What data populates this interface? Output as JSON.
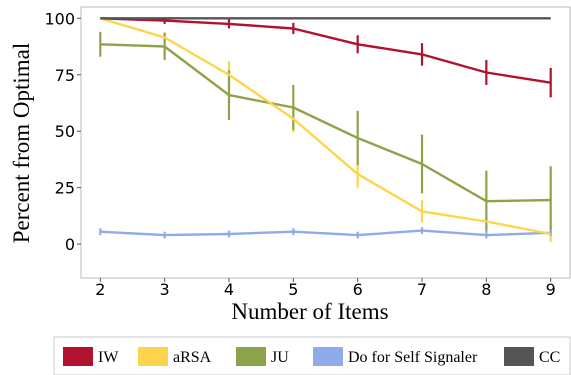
{
  "chart_data": {
    "type": "line",
    "x": [
      2,
      3,
      4,
      5,
      6,
      7,
      8,
      9
    ],
    "xlabel": "Number of Items",
    "ylabel": "Percent from Optimal",
    "xlim": [
      1.7,
      9.3
    ],
    "ylim": [
      -15,
      105
    ],
    "xticks": [
      "2",
      "3",
      "4",
      "5",
      "6",
      "7",
      "8",
      "9"
    ],
    "yticks": [
      "0",
      "25",
      "50",
      "75",
      "100"
    ],
    "grid": false,
    "legend_position": "bottom",
    "series": [
      {
        "name": "IW",
        "color": "#b0122f",
        "values": [
          100,
          99,
          97.5,
          95.5,
          88.5,
          84,
          76,
          71.5
        ],
        "err": [
          0,
          1.5,
          2,
          2.5,
          4,
          5,
          5.5,
          6.5
        ]
      },
      {
        "name": "aRSA",
        "color": "#fdd54d",
        "values": [
          100,
          91.5,
          75,
          55.5,
          31,
          14.5,
          10,
          4.5
        ],
        "err": [
          0,
          2.5,
          6,
          6,
          6,
          5,
          0,
          3.5
        ]
      },
      {
        "name": "JU",
        "color": "#8ca34a",
        "values": [
          88.5,
          87.5,
          66,
          60.5,
          47,
          35.5,
          19,
          19.5
        ],
        "err": [
          5.5,
          6,
          11,
          10,
          12,
          13,
          13.5,
          15
        ]
      },
      {
        "name": "Do for Self Signaler",
        "color": "#8fabeb",
        "values": [
          5.5,
          4,
          4.5,
          5.5,
          4,
          6,
          4,
          5
        ],
        "err": [
          1.5,
          1.5,
          1.5,
          1.5,
          1.5,
          1.5,
          1.5,
          1.5
        ]
      },
      {
        "name": "CC",
        "color": "#555555",
        "values": [
          100,
          100,
          100,
          100,
          100,
          100,
          100,
          100
        ],
        "err": [
          0,
          0,
          0,
          0,
          0,
          0,
          0,
          0
        ]
      }
    ]
  }
}
